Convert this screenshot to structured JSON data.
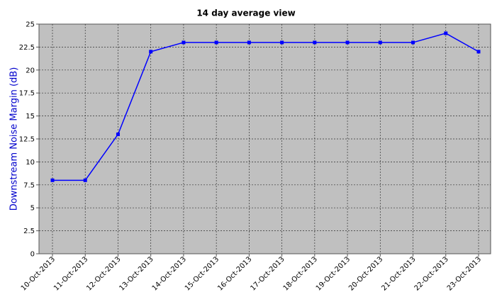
{
  "chart_data": {
    "type": "line",
    "title": "14 day average view",
    "y_label": "Downstream Noise Margin  (dB)",
    "categories": [
      "10-Oct-2013",
      "11-Oct-2013",
      "12-Oct-2013",
      "13-Oct-2013",
      "14-Oct-2013",
      "15-Oct-2013",
      "16-Oct-2013",
      "17-Oct-2013",
      "18-Oct-2013",
      "19-Oct-2013",
      "20-Oct-2013",
      "21-Oct-2013",
      "22-Oct-2013",
      "23-Oct-2013"
    ],
    "series": [
      {
        "color": "#0000ff",
        "values": [
          8,
          8,
          13,
          22,
          23,
          23,
          23,
          23,
          23,
          23,
          23,
          23,
          24,
          22
        ]
      }
    ],
    "ylim": [
      0,
      25
    ],
    "yticks": [
      0,
      2.5,
      5,
      7.5,
      10,
      12.5,
      15,
      17.5,
      20,
      22.5,
      25
    ],
    "grid": true
  }
}
